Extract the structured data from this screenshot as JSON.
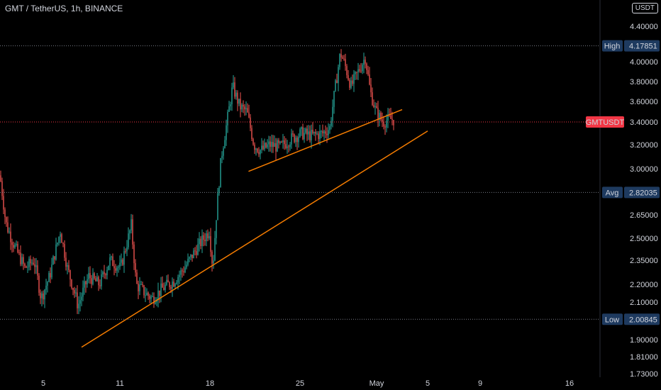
{
  "header": {
    "title": "GMT / TetherUS, 1h, BINANCE",
    "currency": "USDT"
  },
  "colors": {
    "up": "#26a69a",
    "down": "#ef5350",
    "trendline": "#f57c00",
    "badge": "#1e3a5f",
    "last": "#f23645"
  },
  "chart_data": {
    "type": "candlestick",
    "title": "GMT / TetherUS, 1h, BINANCE",
    "y_axis": {
      "ticks": [
        4.4,
        4.0,
        3.8,
        3.6,
        3.4,
        3.2,
        3.0,
        2.65,
        2.5,
        2.35,
        2.2,
        2.1,
        1.9,
        1.81,
        1.73
      ],
      "labels": [
        "4.40000",
        "4.00000",
        "3.80000",
        "3.60000",
        "3.40000",
        "3.20000",
        "3.00000",
        "2.65000",
        "2.50000",
        "2.35000",
        "2.20000",
        "2.10000",
        "1.90000",
        "1.81000",
        "1.73000"
      ]
    },
    "x_axis": {
      "ticks": [
        "5",
        "11",
        "18",
        "25",
        "May",
        "5",
        "9",
        "16"
      ]
    },
    "markers": [
      {
        "label": "High",
        "value": "4.17851",
        "y": 4.17851
      },
      {
        "label": "Avg",
        "value": "2.82035",
        "y": 2.82035
      },
      {
        "label": "Low",
        "value": "2.00845",
        "y": 2.00845
      }
    ],
    "last_price": {
      "label": "GMTUSDT",
      "y": 3.4
    },
    "path": [
      [
        0,
        2.95
      ],
      [
        8,
        2.6
      ],
      [
        20,
        2.45
      ],
      [
        35,
        2.3
      ],
      [
        48,
        2.35
      ],
      [
        58,
        2.12
      ],
      [
        70,
        2.25
      ],
      [
        85,
        2.55
      ],
      [
        95,
        2.3
      ],
      [
        110,
        2.08
      ],
      [
        125,
        2.25
      ],
      [
        140,
        2.2
      ],
      [
        155,
        2.35
      ],
      [
        170,
        2.3
      ],
      [
        185,
        2.58
      ],
      [
        192,
        2.2
      ],
      [
        205,
        2.15
      ],
      [
        215,
        2.12
      ],
      [
        230,
        2.18
      ],
      [
        245,
        2.22
      ],
      [
        260,
        2.3
      ],
      [
        280,
        2.45
      ],
      [
        295,
        2.55
      ],
      [
        300,
        2.3
      ],
      [
        305,
        2.65
      ],
      [
        312,
        3.1
      ],
      [
        320,
        3.4
      ],
      [
        328,
        3.75
      ],
      [
        338,
        3.55
      ],
      [
        348,
        3.5
      ],
      [
        358,
        3.2
      ],
      [
        368,
        3.15
      ],
      [
        380,
        3.2
      ],
      [
        395,
        3.18
      ],
      [
        410,
        3.25
      ],
      [
        425,
        3.3
      ],
      [
        440,
        3.28
      ],
      [
        455,
        3.3
      ],
      [
        465,
        3.35
      ],
      [
        472,
        3.7
      ],
      [
        480,
        4.1
      ],
      [
        487,
        3.95
      ],
      [
        495,
        3.75
      ],
      [
        505,
        3.9
      ],
      [
        515,
        4.05
      ],
      [
        522,
        3.7
      ],
      [
        530,
        3.5
      ],
      [
        540,
        3.4
      ],
      [
        550,
        3.43
      ],
      [
        556,
        3.42
      ]
    ],
    "trendlines": [
      {
        "from": [
          "Apr 8",
          1.86
        ],
        "to": [
          "May 6",
          3.32
        ]
      },
      {
        "from": [
          "Apr 21",
          2.98
        ],
        "to": [
          "May 4",
          3.52
        ]
      }
    ]
  }
}
